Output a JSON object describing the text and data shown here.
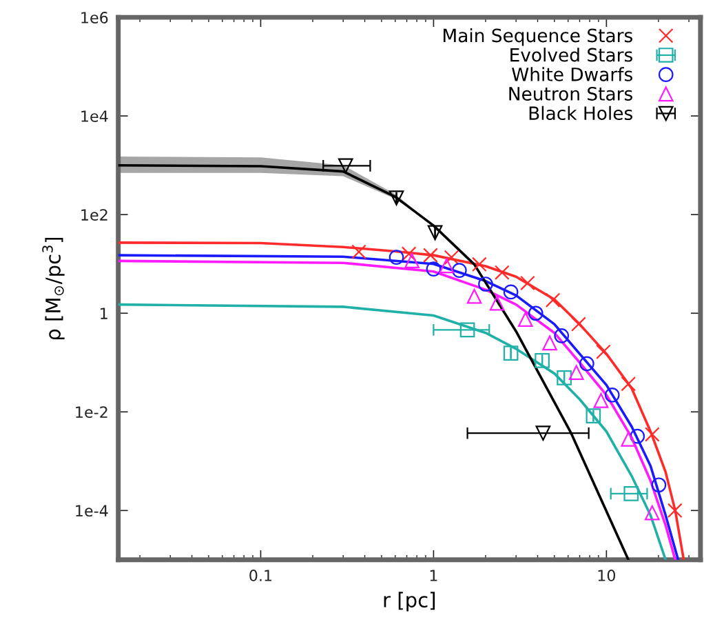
{
  "chart_data": {
    "type": "scatter",
    "xlabel": "r [pc]",
    "ylabel": "ρ [M$_{⊙}$/pc$^{3}$]",
    "log": "xy",
    "grid": false,
    "legend": "top right",
    "xlim": [
      0.015,
      35
    ],
    "xticks": [
      0.1,
      1,
      10
    ],
    "ylim": [
      1e-05,
      1000000
    ],
    "yticks": [
      {
        "value": 1000000,
        "label": "1e6"
      },
      {
        "value": 10000,
        "label": "1e4"
      },
      {
        "value": 100,
        "label": "1e2"
      },
      1,
      {
        "value": 0.01,
        "label": "1e-2"
      },
      {
        "value": 0.0001,
        "label": "1e-4"
      }
    ],
    "series": [
      {
        "type": "line",
        "color": "#ff2a2a",
        "x": [
          0.015,
          0.1,
          0.3,
          0.6,
          1,
          2,
          3,
          5,
          7,
          10,
          14,
          18,
          22,
          25,
          28
        ],
        "values": [
          27,
          26.5,
          22,
          18,
          15,
          9,
          5.5,
          1.9,
          0.6,
          0.15,
          0.03,
          0.004,
          0.0006,
          0.0001,
          1e-05
        ]
      },
      {
        "type": "line",
        "color": "#20b0a8",
        "x": [
          0.015,
          0.3,
          1,
          2,
          3,
          5,
          7,
          10,
          14,
          18,
          22
        ],
        "values": [
          1.5,
          1.35,
          0.9,
          0.4,
          0.19,
          0.06,
          0.018,
          0.004,
          0.0005,
          8e-05,
          1e-05
        ]
      },
      {
        "type": "line",
        "color": "#1a1aff",
        "x": [
          0.015,
          0.3,
          1,
          2,
          3,
          5,
          7,
          10,
          14,
          18,
          22,
          26
        ],
        "values": [
          15,
          14,
          10,
          4.5,
          2.3,
          0.6,
          0.15,
          0.035,
          0.005,
          0.0008,
          8e-05,
          1e-05
        ]
      },
      {
        "type": "line",
        "color": "#ff1aff",
        "x": [
          0.015,
          0.3,
          1,
          2,
          3,
          5,
          7,
          10,
          14,
          18,
          22,
          25
        ],
        "values": [
          11.5,
          10.5,
          7,
          3,
          1.5,
          0.4,
          0.1,
          0.022,
          0.003,
          0.0004,
          5e-05,
          1e-05
        ]
      },
      {
        "type": "line",
        "color": "#000000",
        "x": [
          0.015,
          0.1,
          0.3,
          0.6,
          1,
          1.72,
          3,
          6.25,
          13.4
        ],
        "values": [
          1000,
          960,
          750,
          230,
          60,
          9.8,
          0.43,
          0.0037,
          1e-05
        ],
        "lower": [
          700,
          700,
          600,
          210,
          60,
          9.8,
          0.43,
          0.0037,
          1e-05
        ],
        "upper": [
          1500,
          1450,
          1000,
          260,
          60,
          9.8,
          0.43,
          0.0037,
          1e-05
        ]
      },
      {
        "name": "Main Sequence Stars",
        "color": "#ff2a2a",
        "marker": "cross",
        "x": [
          0.37,
          0.72,
          0.96,
          1.27,
          1.84,
          2.49,
          3.5,
          4.9,
          6.9,
          9.6,
          13.4,
          18.4,
          24.9
        ],
        "values": [
          17.6,
          16,
          15,
          13.6,
          9.8,
          6.7,
          4.1,
          1.85,
          0.6,
          0.165,
          0.037,
          0.0035,
          0.0001
        ]
      },
      {
        "name": "Evolved Stars",
        "color": "#20b0a8",
        "marker": "square",
        "x": [
          1.57,
          2.8,
          4.25,
          5.7,
          8.4,
          13.9
        ],
        "values": [
          0.46,
          0.155,
          0.11,
          0.049,
          0.0083,
          0.00022
        ],
        "xerrors": [
          [
            1.0,
            2.1
          ],
          null,
          null,
          null,
          null,
          [
            10.6,
            17.2
          ]
        ]
      },
      {
        "name": "White Dwarfs",
        "color": "#1a1aff",
        "marker": "circle",
        "x": [
          0.61,
          1.0,
          1.41,
          2.0,
          2.8,
          3.9,
          5.5,
          7.7,
          10.8,
          15.1,
          20.1
        ],
        "values": [
          13.6,
          7.9,
          7.4,
          3.9,
          2.7,
          1.0,
          0.35,
          0.095,
          0.022,
          0.0032,
          0.00033
        ]
      },
      {
        "name": "Neutron Stars",
        "color": "#ff1aff",
        "marker": "triangle",
        "x": [
          0.75,
          1.19,
          1.72,
          2.33,
          3.4,
          4.7,
          6.7,
          9.3,
          13.4,
          18.4
        ],
        "values": [
          11.6,
          9.2,
          2.2,
          1.6,
          0.75,
          0.25,
          0.063,
          0.017,
          0.0028,
          9e-05
        ]
      },
      {
        "name": "Black Holes",
        "color": "#000000",
        "marker": "triangle_down",
        "x": [
          0.31,
          0.61,
          1.02,
          4.3
        ],
        "values": [
          980,
          217,
          43,
          0.0037
        ],
        "xerrors": [
          [
            0.23,
            0.43
          ],
          null,
          null,
          [
            1.57,
            7.9
          ]
        ]
      }
    ]
  }
}
